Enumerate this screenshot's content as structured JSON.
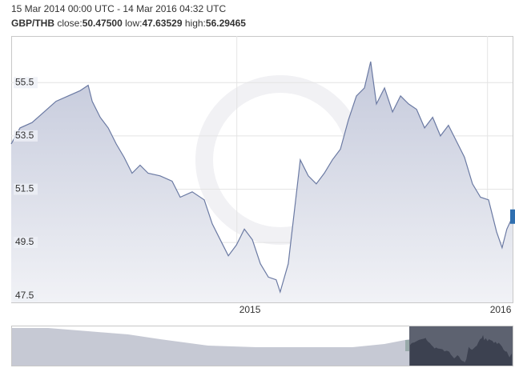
{
  "chart_data": {
    "type": "area",
    "title": "15 Mar 2014 00:00 UTC - 14 Mar 2016 04:32 UTC",
    "summary": {
      "pair": "GBP/THB",
      "stats": [
        {
          "name": "close:",
          "value": "50.47500"
        },
        {
          "name": "low:",
          "value": "47.63529"
        },
        {
          "name": "high:",
          "value": "56.29465"
        }
      ]
    },
    "x": [
      2014.1,
      2014.135,
      2014.183,
      2014.231,
      2014.279,
      2014.327,
      2014.375,
      2014.407,
      2014.423,
      2014.455,
      2014.487,
      2014.519,
      2014.55,
      2014.582,
      2014.614,
      2014.646,
      2014.694,
      2014.742,
      2014.774,
      2014.822,
      2014.87,
      2014.902,
      2014.934,
      2014.966,
      2014.998,
      2015.03,
      2015.062,
      2015.094,
      2015.126,
      2015.157,
      2015.173,
      2015.205,
      2015.231,
      2015.253,
      2015.285,
      2015.317,
      2015.349,
      2015.381,
      2015.413,
      2015.445,
      2015.477,
      2015.509,
      2015.534,
      2015.557,
      2015.589,
      2015.621,
      2015.653,
      2015.685,
      2015.717,
      2015.749,
      2015.781,
      2015.812,
      2015.844,
      2015.876,
      2015.908,
      2015.94,
      2015.972,
      2016.004,
      2016.036,
      2016.058,
      2016.077,
      2016.1
    ],
    "values": [
      53.2,
      53.8,
      54.0,
      54.4,
      54.8,
      55.0,
      55.2,
      55.4,
      54.8,
      54.2,
      53.8,
      53.2,
      52.7,
      52.1,
      52.4,
      52.1,
      52.0,
      51.8,
      51.2,
      51.4,
      51.1,
      50.2,
      49.6,
      49.0,
      49.4,
      50.0,
      49.6,
      48.7,
      48.2,
      48.1,
      47.64,
      48.7,
      50.8,
      52.6,
      52.0,
      51.7,
      52.1,
      52.6,
      53.0,
      54.1,
      55.0,
      55.3,
      56.29,
      54.7,
      55.3,
      54.4,
      55.0,
      54.7,
      54.5,
      53.8,
      54.2,
      53.5,
      53.9,
      53.3,
      52.7,
      51.7,
      51.2,
      51.1,
      49.9,
      49.3,
      50.0,
      50.47
    ],
    "color": "#6b7aa3",
    "xlim": [
      2014.1,
      2016.1
    ],
    "xticks": [
      2015,
      2016
    ],
    "ylim": [
      47.25,
      57.25
    ],
    "yticks": [
      47.5,
      49.5,
      51.5,
      53.5,
      55.5
    ],
    "grid": true
  }
}
